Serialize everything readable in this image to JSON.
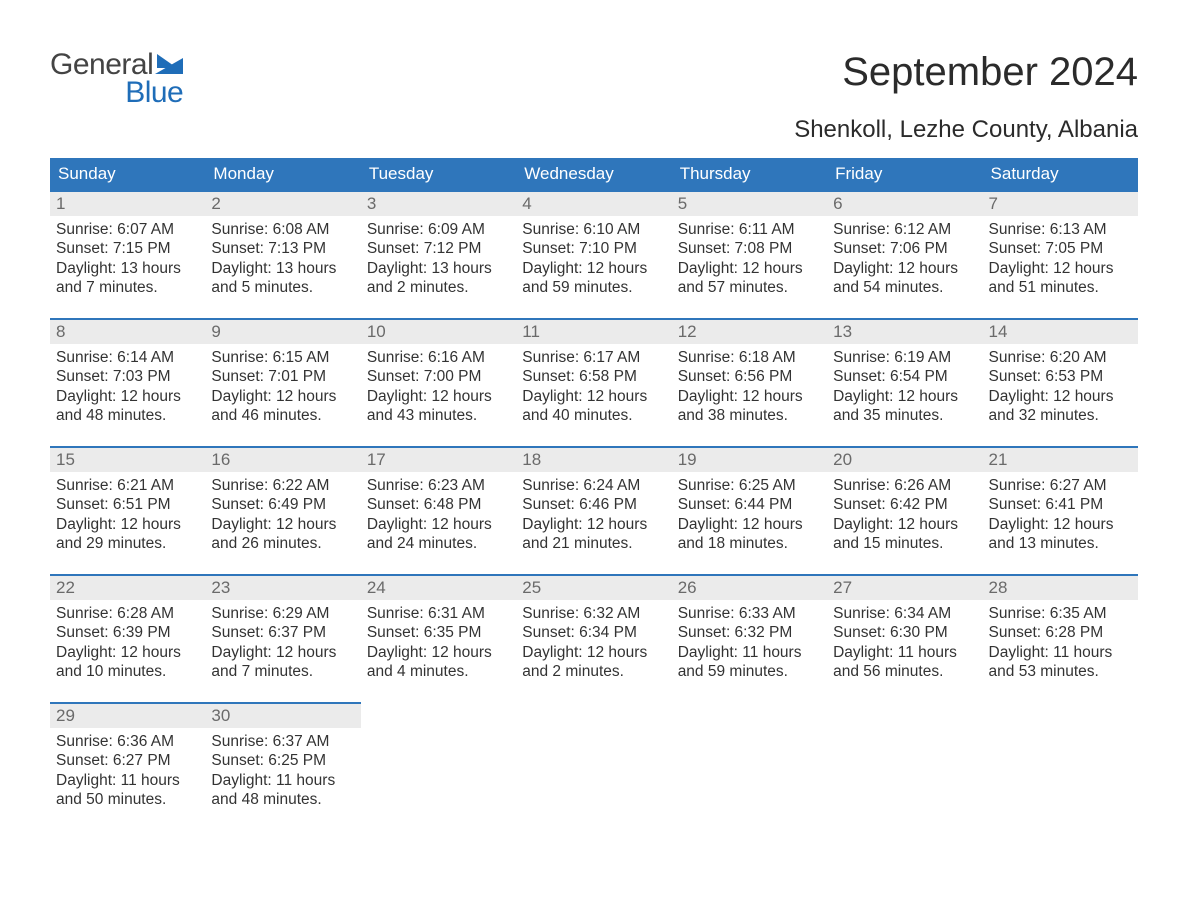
{
  "logo": {
    "word1": "General",
    "word2": "Blue"
  },
  "title": "September 2024",
  "location": "Shenkoll, Lezhe County, Albania",
  "colors": {
    "header_bg": "#2f76bb",
    "header_text": "#ffffff",
    "daynum_bg": "#ebebeb",
    "daynum_text": "#6a6a6a",
    "border": "#2f76bb",
    "body_text": "#333333",
    "logo_gray": "#444444",
    "logo_blue": "#1f6db8",
    "background": "#ffffff"
  },
  "typography": {
    "title_fontsize": 40,
    "location_fontsize": 24,
    "weekday_fontsize": 17,
    "daynum_fontsize": 17,
    "body_fontsize": 15.5,
    "font_family": "Arial"
  },
  "layout": {
    "columns": 7,
    "rows": 5,
    "cell_min_height": 128
  },
  "weekdays": [
    "Sunday",
    "Monday",
    "Tuesday",
    "Wednesday",
    "Thursday",
    "Friday",
    "Saturday"
  ],
  "weeks": [
    [
      {
        "n": "1",
        "sunrise": "Sunrise: 6:07 AM",
        "sunset": "Sunset: 7:15 PM",
        "d1": "Daylight: 13 hours",
        "d2": "and 7 minutes."
      },
      {
        "n": "2",
        "sunrise": "Sunrise: 6:08 AM",
        "sunset": "Sunset: 7:13 PM",
        "d1": "Daylight: 13 hours",
        "d2": "and 5 minutes."
      },
      {
        "n": "3",
        "sunrise": "Sunrise: 6:09 AM",
        "sunset": "Sunset: 7:12 PM",
        "d1": "Daylight: 13 hours",
        "d2": "and 2 minutes."
      },
      {
        "n": "4",
        "sunrise": "Sunrise: 6:10 AM",
        "sunset": "Sunset: 7:10 PM",
        "d1": "Daylight: 12 hours",
        "d2": "and 59 minutes."
      },
      {
        "n": "5",
        "sunrise": "Sunrise: 6:11 AM",
        "sunset": "Sunset: 7:08 PM",
        "d1": "Daylight: 12 hours",
        "d2": "and 57 minutes."
      },
      {
        "n": "6",
        "sunrise": "Sunrise: 6:12 AM",
        "sunset": "Sunset: 7:06 PM",
        "d1": "Daylight: 12 hours",
        "d2": "and 54 minutes."
      },
      {
        "n": "7",
        "sunrise": "Sunrise: 6:13 AM",
        "sunset": "Sunset: 7:05 PM",
        "d1": "Daylight: 12 hours",
        "d2": "and 51 minutes."
      }
    ],
    [
      {
        "n": "8",
        "sunrise": "Sunrise: 6:14 AM",
        "sunset": "Sunset: 7:03 PM",
        "d1": "Daylight: 12 hours",
        "d2": "and 48 minutes."
      },
      {
        "n": "9",
        "sunrise": "Sunrise: 6:15 AM",
        "sunset": "Sunset: 7:01 PM",
        "d1": "Daylight: 12 hours",
        "d2": "and 46 minutes."
      },
      {
        "n": "10",
        "sunrise": "Sunrise: 6:16 AM",
        "sunset": "Sunset: 7:00 PM",
        "d1": "Daylight: 12 hours",
        "d2": "and 43 minutes."
      },
      {
        "n": "11",
        "sunrise": "Sunrise: 6:17 AM",
        "sunset": "Sunset: 6:58 PM",
        "d1": "Daylight: 12 hours",
        "d2": "and 40 minutes."
      },
      {
        "n": "12",
        "sunrise": "Sunrise: 6:18 AM",
        "sunset": "Sunset: 6:56 PM",
        "d1": "Daylight: 12 hours",
        "d2": "and 38 minutes."
      },
      {
        "n": "13",
        "sunrise": "Sunrise: 6:19 AM",
        "sunset": "Sunset: 6:54 PM",
        "d1": "Daylight: 12 hours",
        "d2": "and 35 minutes."
      },
      {
        "n": "14",
        "sunrise": "Sunrise: 6:20 AM",
        "sunset": "Sunset: 6:53 PM",
        "d1": "Daylight: 12 hours",
        "d2": "and 32 minutes."
      }
    ],
    [
      {
        "n": "15",
        "sunrise": "Sunrise: 6:21 AM",
        "sunset": "Sunset: 6:51 PM",
        "d1": "Daylight: 12 hours",
        "d2": "and 29 minutes."
      },
      {
        "n": "16",
        "sunrise": "Sunrise: 6:22 AM",
        "sunset": "Sunset: 6:49 PM",
        "d1": "Daylight: 12 hours",
        "d2": "and 26 minutes."
      },
      {
        "n": "17",
        "sunrise": "Sunrise: 6:23 AM",
        "sunset": "Sunset: 6:48 PM",
        "d1": "Daylight: 12 hours",
        "d2": "and 24 minutes."
      },
      {
        "n": "18",
        "sunrise": "Sunrise: 6:24 AM",
        "sunset": "Sunset: 6:46 PM",
        "d1": "Daylight: 12 hours",
        "d2": "and 21 minutes."
      },
      {
        "n": "19",
        "sunrise": "Sunrise: 6:25 AM",
        "sunset": "Sunset: 6:44 PM",
        "d1": "Daylight: 12 hours",
        "d2": "and 18 minutes."
      },
      {
        "n": "20",
        "sunrise": "Sunrise: 6:26 AM",
        "sunset": "Sunset: 6:42 PM",
        "d1": "Daylight: 12 hours",
        "d2": "and 15 minutes."
      },
      {
        "n": "21",
        "sunrise": "Sunrise: 6:27 AM",
        "sunset": "Sunset: 6:41 PM",
        "d1": "Daylight: 12 hours",
        "d2": "and 13 minutes."
      }
    ],
    [
      {
        "n": "22",
        "sunrise": "Sunrise: 6:28 AM",
        "sunset": "Sunset: 6:39 PM",
        "d1": "Daylight: 12 hours",
        "d2": "and 10 minutes."
      },
      {
        "n": "23",
        "sunrise": "Sunrise: 6:29 AM",
        "sunset": "Sunset: 6:37 PM",
        "d1": "Daylight: 12 hours",
        "d2": "and 7 minutes."
      },
      {
        "n": "24",
        "sunrise": "Sunrise: 6:31 AM",
        "sunset": "Sunset: 6:35 PM",
        "d1": "Daylight: 12 hours",
        "d2": "and 4 minutes."
      },
      {
        "n": "25",
        "sunrise": "Sunrise: 6:32 AM",
        "sunset": "Sunset: 6:34 PM",
        "d1": "Daylight: 12 hours",
        "d2": "and 2 minutes."
      },
      {
        "n": "26",
        "sunrise": "Sunrise: 6:33 AM",
        "sunset": "Sunset: 6:32 PM",
        "d1": "Daylight: 11 hours",
        "d2": "and 59 minutes."
      },
      {
        "n": "27",
        "sunrise": "Sunrise: 6:34 AM",
        "sunset": "Sunset: 6:30 PM",
        "d1": "Daylight: 11 hours",
        "d2": "and 56 minutes."
      },
      {
        "n": "28",
        "sunrise": "Sunrise: 6:35 AM",
        "sunset": "Sunset: 6:28 PM",
        "d1": "Daylight: 11 hours",
        "d2": "and 53 minutes."
      }
    ],
    [
      {
        "n": "29",
        "sunrise": "Sunrise: 6:36 AM",
        "sunset": "Sunset: 6:27 PM",
        "d1": "Daylight: 11 hours",
        "d2": "and 50 minutes."
      },
      {
        "n": "30",
        "sunrise": "Sunrise: 6:37 AM",
        "sunset": "Sunset: 6:25 PM",
        "d1": "Daylight: 11 hours",
        "d2": "and 48 minutes."
      },
      null,
      null,
      null,
      null,
      null
    ]
  ]
}
